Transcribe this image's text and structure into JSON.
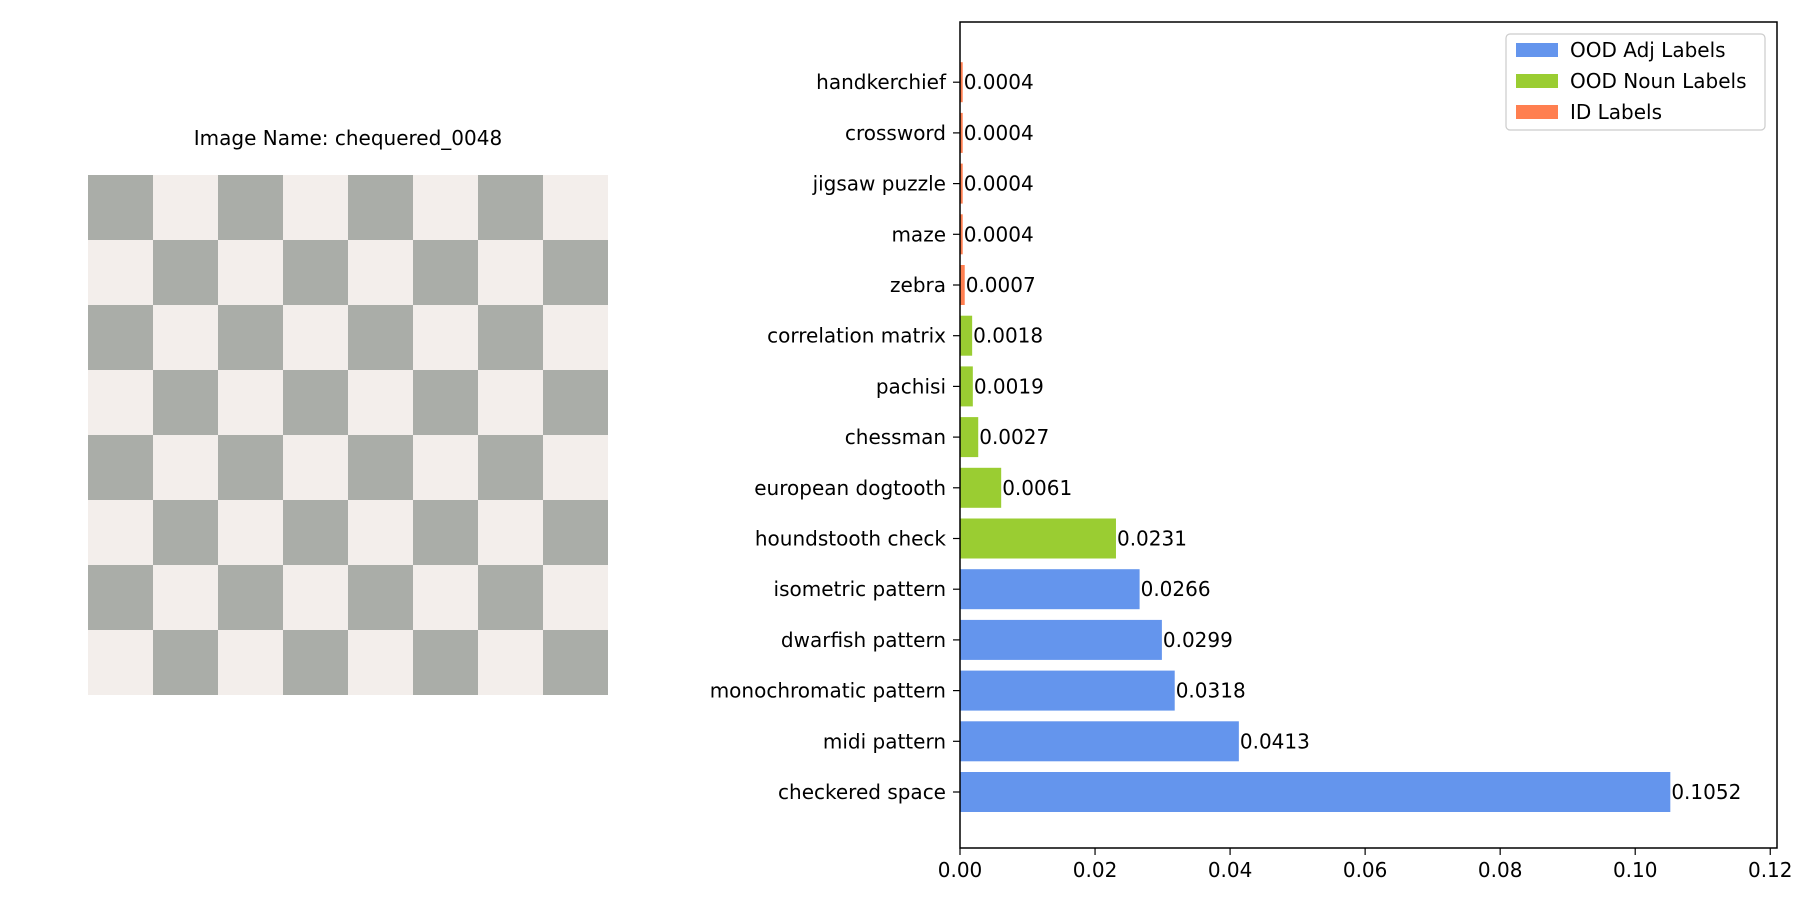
{
  "image_panel": {
    "title_prefix": "Image Name: ",
    "image_name": "chequered_0048",
    "colors": {
      "dark": "#aaada8",
      "light": "#f3eeeb"
    }
  },
  "chart_data": {
    "type": "bar",
    "orientation": "horizontal",
    "categories": [
      "checkered space",
      "midi pattern",
      "monochromatic pattern",
      "dwarfish pattern",
      "isometric pattern",
      "houndstooth check",
      "european dogtooth",
      "chessman",
      "pachisi",
      "correlation matrix",
      "zebra",
      "maze",
      "jigsaw puzzle",
      "crossword",
      "handkerchief"
    ],
    "values": [
      0.1052,
      0.0413,
      0.0318,
      0.0299,
      0.0266,
      0.0231,
      0.0061,
      0.0027,
      0.0019,
      0.0018,
      0.0007,
      0.0004,
      0.0004,
      0.0004,
      0.0004
    ],
    "value_labels": [
      "0.1052",
      "0.0413",
      "0.0318",
      "0.0299",
      "0.0266",
      "0.0231",
      "0.0061",
      "0.0027",
      "0.0019",
      "0.0018",
      "0.0007",
      "0.0004",
      "0.0004",
      "0.0004",
      "0.0004"
    ],
    "groups": [
      "ood_adj",
      "ood_adj",
      "ood_adj",
      "ood_adj",
      "ood_adj",
      "ood_noun",
      "ood_noun",
      "ood_noun",
      "ood_noun",
      "ood_noun",
      "id",
      "id",
      "id",
      "id",
      "id"
    ],
    "legend": [
      {
        "key": "ood_adj",
        "name": "OOD Adj Labels",
        "color": "#6495ed"
      },
      {
        "key": "ood_noun",
        "name": "OOD Noun Labels",
        "color": "#9acd32"
      },
      {
        "key": "id",
        "name": "ID Labels",
        "color": "#ff7f50"
      }
    ],
    "legend_position": "top-right",
    "xlim": [
      0,
      0.121
    ],
    "xticks": [
      0,
      0.02,
      0.04,
      0.06,
      0.08,
      0.1,
      0.12
    ],
    "xtick_labels": [
      "0.00",
      "0.02",
      "0.04",
      "0.06",
      "0.08",
      "0.10",
      "0.12"
    ],
    "title": "",
    "xlabel": "",
    "ylabel": "",
    "grid": false
  }
}
